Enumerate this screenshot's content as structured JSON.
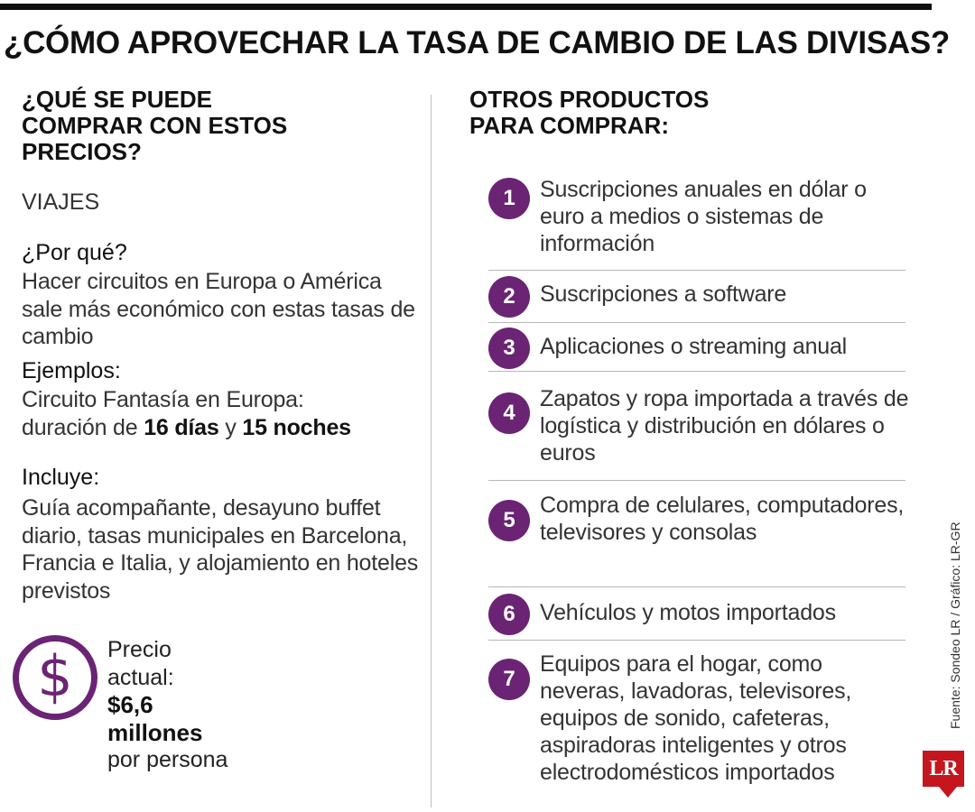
{
  "title": "¿CÓMO APROVECHAR LA TASA DE CAMBIO DE LAS DIVISAS?",
  "left": {
    "heading": "¿QUÉ SE PUEDE COMPRAR CON ESTOS PRECIOS?",
    "category": "VIAJES",
    "why_label": "¿Por qué?",
    "why_text": "Hacer circuitos en Europa o América sale más económico con estas tasas de cambio",
    "examples_label": "Ejemplos:",
    "examples_line1": "Circuito Fantasía en Europa:",
    "examples_pre": "duración de ",
    "examples_days": "16 días",
    "examples_and": " y ",
    "examples_nights": "15 noches",
    "includes_label": "Incluye:",
    "includes_text": "Guía acompañante, desayuno buffet diario, tasas municipales en Barcelona, Francia e Italia, y alojamiento en hoteles previstos",
    "price_label_1": "Precio",
    "price_label_2": "actual:",
    "price_value_1": "$6,6",
    "price_value_2": "millones",
    "price_suffix": "por persona",
    "dollar_icon": "dollar-icon"
  },
  "right": {
    "heading": "OTROS PRODUCTOS PARA COMPRAR:",
    "items": [
      {
        "num": "1",
        "text": "Suscripciones anuales en dólar o euro a medios o sistemas de información"
      },
      {
        "num": "2",
        "text": "Suscripciones a software"
      },
      {
        "num": "3",
        "text": "Aplicaciones o streaming anual"
      },
      {
        "num": "4",
        "text": "Zapatos y ropa importada a través de logística y distribución en dólares o euros"
      },
      {
        "num": "5",
        "text": "Compra de celulares, computadores, televisores y consolas"
      },
      {
        "num": "6",
        "text": "Vehículos y motos importados"
      },
      {
        "num": "7",
        "text": "Equipos para el hogar, como neveras, lavadoras, televisores, equipos de sonido, cafeteras, aspiradoras inteligentes y otros electrodomésticos importados"
      }
    ]
  },
  "source": "Fuente: Sondeo LR / Gráfico: LR-GR",
  "logo_text": "LR",
  "colors": {
    "accent": "#6b2374",
    "logo": "#c4161c"
  }
}
